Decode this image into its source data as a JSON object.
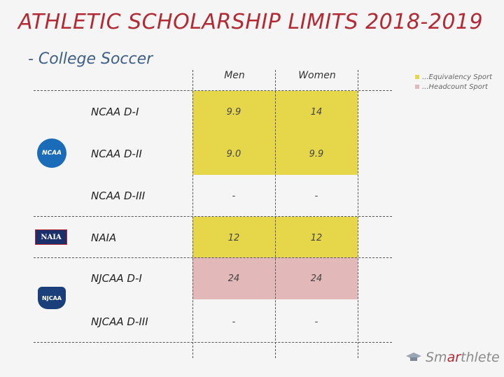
{
  "title": "ATHLETIC SCHOLARSHIP LIMITS 2018-2019",
  "subtitle": "- College Soccer",
  "legend": [
    {
      "label": "...Equivalency Sport",
      "color": "#e6d64a"
    },
    {
      "label": "...Headcount Sport",
      "color": "#e3b8b8"
    }
  ],
  "columns": [
    "Men",
    "Women"
  ],
  "colors": {
    "equivalency": "#e6d64a",
    "headcount": "#e3b8b8",
    "title": "#b22a33",
    "subtitle": "#3e5f86"
  },
  "rows": [
    {
      "label": "NCAA D-I",
      "men": "9.9",
      "women": "14",
      "type": "equivalency"
    },
    {
      "label": "NCAA D-II",
      "men": "9.0",
      "women": "9.9",
      "type": "equivalency"
    },
    {
      "label": "NCAA D-III",
      "men": "-",
      "women": "-",
      "type": "none"
    },
    {
      "label": "NAIA",
      "men": "12",
      "women": "12",
      "type": "equivalency"
    },
    {
      "label": "NJCAA D-I",
      "men": "24",
      "women": "24",
      "type": "headcount"
    },
    {
      "label": "NJCAA D-III",
      "men": "-",
      "women": "-",
      "type": "none"
    }
  ],
  "logos": {
    "ncaa": "NCAA",
    "naia": "NAIA",
    "njcaa": "NJCAA"
  },
  "brand": {
    "prefix": "Sm",
    "accent": "ar",
    "suffix": "thlete"
  }
}
